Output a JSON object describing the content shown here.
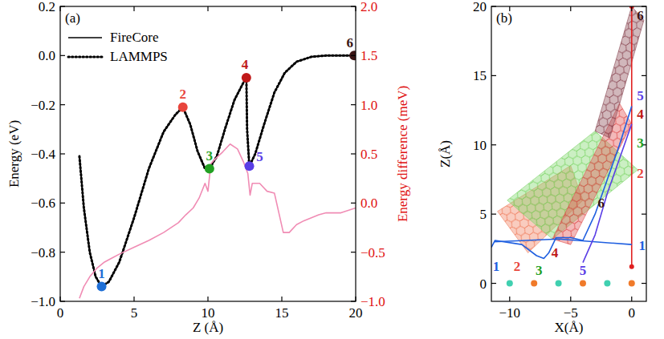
{
  "chart_data": [
    {
      "type": "line",
      "title": "(a)",
      "x_label": "Z (Å)",
      "y_label": "Energy (eV)",
      "y2_label": "Energy difference (meV)",
      "xlim": [
        0,
        20
      ],
      "xticks": [
        0,
        5,
        10,
        15,
        20
      ],
      "ylim": [
        -1.0,
        0.2
      ],
      "yticks": [
        {
          "value": -1.0,
          "label": "−1.0"
        },
        {
          "value": -0.8,
          "label": "−0.8"
        },
        {
          "value": -0.6,
          "label": "−0.6"
        },
        {
          "value": -0.4,
          "label": "−0.4"
        },
        {
          "value": -0.2,
          "label": "−0.2"
        },
        {
          "value": 0,
          "label": "0.0"
        },
        0.2
      ],
      "y2lim": [
        -1.0,
        2.0
      ],
      "y2ticks": [
        {
          "value": -1.0,
          "label": "−1.0"
        },
        {
          "value": -0.5,
          "label": "−0.5"
        },
        {
          "value": 0,
          "label": "0.0"
        },
        0.5,
        {
          "value": 1.0,
          "label": "1.0"
        },
        1.5,
        {
          "value": 2.0,
          "label": "2.0"
        }
      ],
      "legend": "upper left",
      "series": [
        {
          "name": "FireCore",
          "type": "line",
          "line_style": "solid",
          "color": "#000000",
          "x": [
            1.3,
            1.6,
            2.0,
            2.4,
            2.8,
            3.3,
            4.0,
            5.0,
            6.0,
            7.0,
            7.8,
            8.3,
            8.8,
            9.3,
            9.8,
            10.1,
            10.6,
            11.2,
            11.8,
            12.4,
            12.6,
            12.65,
            12.8,
            13.2,
            13.8,
            14.5,
            15.2,
            16.0,
            17.0,
            18.0,
            19.0,
            20.0
          ],
          "values": [
            -0.41,
            -0.62,
            -0.8,
            -0.9,
            -0.94,
            -0.92,
            -0.84,
            -0.66,
            -0.46,
            -0.31,
            -0.24,
            -0.21,
            -0.28,
            -0.39,
            -0.46,
            -0.46,
            -0.41,
            -0.29,
            -0.18,
            -0.11,
            -0.09,
            -0.3,
            -0.45,
            -0.4,
            -0.28,
            -0.15,
            -0.07,
            -0.025,
            -0.005,
            0,
            0,
            0
          ]
        },
        {
          "name": "LAMMPS",
          "type": "line",
          "line_style": "dotted",
          "color": "#000000",
          "x": [
            1.3,
            1.6,
            2.0,
            2.4,
            2.8,
            3.3,
            4.0,
            5.0,
            6.0,
            7.0,
            7.8,
            8.3,
            8.8,
            9.3,
            9.8,
            10.1,
            10.6,
            11.2,
            11.8,
            12.4,
            12.6,
            12.65,
            12.8,
            13.2,
            13.8,
            14.5,
            15.2,
            16.0,
            17.0,
            18.0,
            19.0,
            20.0
          ],
          "values": [
            -0.41,
            -0.62,
            -0.8,
            -0.9,
            -0.94,
            -0.92,
            -0.84,
            -0.66,
            -0.46,
            -0.31,
            -0.24,
            -0.21,
            -0.28,
            -0.39,
            -0.46,
            -0.46,
            -0.41,
            -0.29,
            -0.18,
            -0.11,
            -0.09,
            -0.3,
            -0.45,
            -0.4,
            -0.28,
            -0.15,
            -0.07,
            -0.025,
            -0.005,
            0,
            0,
            0
          ]
        },
        {
          "type": "line",
          "line_style": "solid",
          "color": "#f08cb4",
          "axis": "y2",
          "x": [
            1.3,
            1.6,
            2,
            2.5,
            3,
            3.5,
            4,
            5,
            6,
            7,
            8,
            8.5,
            9,
            9.4,
            9.8,
            10,
            10.2,
            10.5,
            11,
            11.5,
            12,
            12.4,
            12.7,
            12.85,
            13,
            13.5,
            14,
            14.5,
            14.8,
            15.1,
            15.5,
            16,
            16.5,
            17,
            17.5,
            18,
            19,
            20
          ],
          "values": [
            -0.97,
            -0.85,
            -0.75,
            -0.66,
            -0.6,
            -0.56,
            -0.52,
            -0.45,
            -0.38,
            -0.3,
            -0.2,
            -0.12,
            -0.05,
            0.05,
            0.2,
            0.12,
            0.4,
            0.45,
            0.52,
            0.6,
            0.55,
            0.42,
            0.3,
            0.08,
            0.2,
            0.2,
            0.12,
            0.1,
            -0.1,
            -0.3,
            -0.3,
            -0.22,
            -0.18,
            -0.15,
            -0.12,
            -0.1,
            -0.1,
            -0.05
          ]
        },
        {
          "type": "scatter",
          "marker": "circle",
          "colors": [
            "#1f6fd6",
            "#e8453c",
            "#22a022",
            "#c01818",
            "#5a3ee6",
            "#3a1414"
          ],
          "x": [
            2.8,
            8.3,
            10.1,
            12.6,
            12.8,
            19.9
          ],
          "values": [
            -0.94,
            -0.21,
            -0.46,
            -0.09,
            -0.45,
            0.0
          ]
        }
      ],
      "annotations": [
        {
          "text": "1",
          "x": 2.8,
          "y": -0.905,
          "color": "#1f6fd6"
        },
        {
          "text": "2",
          "x": 8.3,
          "y": -0.175,
          "color": "#e8453c"
        },
        {
          "text": "3",
          "x": 10.1,
          "y": -0.425,
          "color": "#22a022"
        },
        {
          "text": "4",
          "x": 12.5,
          "y": -0.055,
          "color": "#c01818"
        },
        {
          "text": "5",
          "x": 13.5,
          "y": -0.43,
          "color": "#5a3ee6"
        },
        {
          "text": "6",
          "x": 19.6,
          "y": 0.035,
          "color": "#3a1414"
        }
      ]
    },
    {
      "type": "line",
      "title": "(b)",
      "x_label": "X(Å)",
      "y_label": "Z(Å)",
      "xlim": [
        -11.5,
        1.2
      ],
      "xticks": [
        {
          "value": -10,
          "label": "−10"
        },
        {
          "value": -5,
          "label": "−5"
        },
        0
      ],
      "ylim": [
        -1.3,
        20
      ],
      "yticks": [
        0,
        5,
        10,
        15,
        20
      ],
      "series": [
        {
          "type": "area",
          "color": "#f08060",
          "x": [
            -11,
            -8.5,
            -4,
            -5
          ],
          "values": [
            5.2,
            2.2,
            6,
            8.5
          ]
        },
        {
          "type": "area",
          "color": "#7ed66a",
          "x": [
            -10.2,
            -6.5,
            0.5,
            -3
          ],
          "values": [
            6.0,
            3.2,
            8.2,
            11.0
          ]
        },
        {
          "type": "area",
          "color": "#e05050",
          "x": [
            -6.5,
            -5,
            0,
            -1
          ],
          "values": [
            3.2,
            2.8,
            11.5,
            13
          ]
        },
        {
          "type": "area",
          "color": "#8b4a55",
          "x": [
            -3,
            -1.8,
            1,
            0
          ],
          "values": [
            11,
            10.5,
            19,
            20
          ]
        },
        {
          "type": "scatter",
          "marker": "circle",
          "colors": [
            "#40d0b0",
            "#f07a2a",
            "#40d0b0",
            "#f07a2a",
            "#40d0b0",
            "#f07a2a"
          ],
          "x": [
            -10,
            -8,
            -6,
            -4,
            -2,
            0
          ],
          "values": [
            0,
            0,
            0,
            0,
            0,
            0
          ]
        },
        {
          "type": "line",
          "line_style": "solid",
          "marker": "circle",
          "color": "#e02020",
          "x": [
            0,
            0
          ],
          "values": [
            1.2,
            20
          ]
        },
        {
          "type": "line",
          "line_style": "solid",
          "color": "#1f5fe0",
          "x": [
            -11.3,
            -6,
            0
          ],
          "values": [
            3.0,
            3.2,
            2.8
          ]
        },
        {
          "type": "line",
          "line_style": "solid",
          "color": "#1f5fe0",
          "x": [
            -11.5,
            -11.2,
            -9,
            -7.8,
            -7.2,
            -6.8,
            -6.2,
            -5,
            -4,
            -3,
            -2,
            -1,
            0
          ],
          "values": [
            2.6,
            3.1,
            2.8,
            2.0,
            1.8,
            2.2,
            3.3,
            3.3,
            3.1,
            5,
            7.5,
            10,
            12.8
          ]
        },
        {
          "type": "line",
          "line_style": "solid",
          "color": "#5a3ee6",
          "x": [
            -4,
            -3,
            -2,
            -1,
            0
          ],
          "values": [
            1.5,
            3.5,
            6.5,
            9,
            11.5
          ]
        }
      ],
      "annotations": [
        {
          "text": "1",
          "x": -11.1,
          "y": 0.9,
          "color": "#1f5fe0"
        },
        {
          "text": "1",
          "x": 0.85,
          "y": 2.4,
          "color": "#1f5fe0"
        },
        {
          "text": "2",
          "x": -9.4,
          "y": 0.9,
          "color": "#e8453c"
        },
        {
          "text": "2",
          "x": 0.7,
          "y": 7.6,
          "color": "#e8453c"
        },
        {
          "text": "3",
          "x": -7.6,
          "y": 0.6,
          "color": "#22a022"
        },
        {
          "text": "3",
          "x": 0.7,
          "y": 9.8,
          "color": "#22a022"
        },
        {
          "text": "4",
          "x": -6.3,
          "y": 1.9,
          "color": "#c01818"
        },
        {
          "text": "4",
          "x": 0.7,
          "y": 11.9,
          "color": "#c01818"
        },
        {
          "text": "5",
          "x": -4.0,
          "y": 0.6,
          "color": "#5a3ee6"
        },
        {
          "text": "5",
          "x": 0.7,
          "y": 13.2,
          "color": "#5a3ee6"
        },
        {
          "text": "6",
          "x": 0.7,
          "y": 19.0,
          "color": "#3a1414"
        },
        {
          "text": "6",
          "x": -2.5,
          "y": 5.5,
          "color": "#3a1414"
        }
      ]
    }
  ]
}
